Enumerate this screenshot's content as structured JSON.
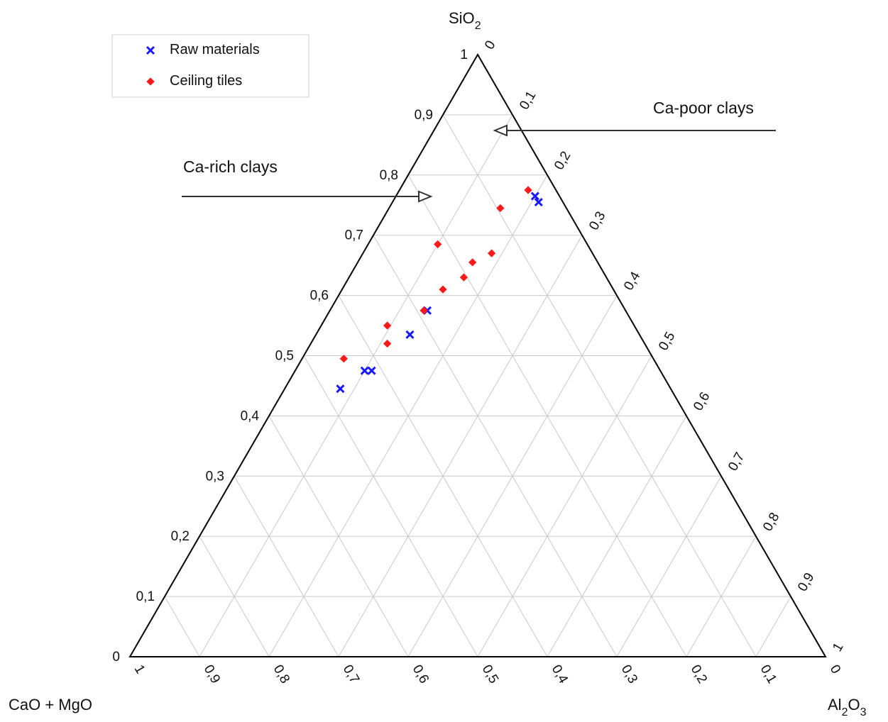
{
  "chart_data": {
    "type": "scatter",
    "diagram": "ternary",
    "axes": {
      "top": {
        "label": "SiO",
        "subscript": "2"
      },
      "left": {
        "label": "CaO + MgO"
      },
      "right": {
        "label": "Al",
        "subscript_1": "2",
        "label_2": "O",
        "subscript_2": "3"
      }
    },
    "ticks": {
      "sio2": [
        "0",
        "0,1",
        "0,2",
        "0,3",
        "0,4",
        "0,5",
        "0,6",
        "0,7",
        "0,8",
        "0,9",
        "1"
      ],
      "al2o3": [
        "0",
        "0,1",
        "0,2",
        "0,3",
        "0,4",
        "0,5",
        "0,6",
        "0,7",
        "0,8",
        "0,9",
        "1"
      ],
      "cao_mgo": [
        "1",
        "0,9",
        "0,8",
        "0,7",
        "0,6",
        "0,5",
        "0,4",
        "0,3",
        "0,2",
        "0,1",
        "0"
      ]
    },
    "grid": true,
    "legend": {
      "position": "top-left",
      "entries": [
        {
          "name": "Raw materials",
          "marker": "x",
          "color": "#1a1aff"
        },
        {
          "name": "Ceiling tiles",
          "marker": "diamond",
          "color": "#ff1a1a"
        }
      ]
    },
    "series": [
      {
        "name": "Raw materials",
        "marker": "x",
        "color": "#1a1aff",
        "points": [
          {
            "sio2": 0.765,
            "al2o3": 0.2,
            "cao_mgo": 0.035
          },
          {
            "sio2": 0.755,
            "al2o3": 0.21,
            "cao_mgo": 0.035
          },
          {
            "sio2": 0.575,
            "al2o3": 0.14,
            "cao_mgo": 0.285
          },
          {
            "sio2": 0.535,
            "al2o3": 0.135,
            "cao_mgo": 0.33
          },
          {
            "sio2": 0.475,
            "al2o3": 0.1,
            "cao_mgo": 0.425
          },
          {
            "sio2": 0.475,
            "al2o3": 0.11,
            "cao_mgo": 0.415
          },
          {
            "sio2": 0.445,
            "al2o3": 0.08,
            "cao_mgo": 0.475
          }
        ]
      },
      {
        "name": "Ceiling tiles",
        "marker": "diamond",
        "color": "#ff1a1a",
        "points": [
          {
            "sio2": 0.775,
            "al2o3": 0.185,
            "cao_mgo": 0.04
          },
          {
            "sio2": 0.745,
            "al2o3": 0.16,
            "cao_mgo": 0.095
          },
          {
            "sio2": 0.685,
            "al2o3": 0.1,
            "cao_mgo": 0.215
          },
          {
            "sio2": 0.67,
            "al2o3": 0.185,
            "cao_mgo": 0.145
          },
          {
            "sio2": 0.655,
            "al2o3": 0.165,
            "cao_mgo": 0.18
          },
          {
            "sio2": 0.63,
            "al2o3": 0.165,
            "cao_mgo": 0.205
          },
          {
            "sio2": 0.61,
            "al2o3": 0.145,
            "cao_mgo": 0.245
          },
          {
            "sio2": 0.575,
            "al2o3": 0.135,
            "cao_mgo": 0.29
          },
          {
            "sio2": 0.55,
            "al2o3": 0.095,
            "cao_mgo": 0.355
          },
          {
            "sio2": 0.52,
            "al2o3": 0.11,
            "cao_mgo": 0.37
          },
          {
            "sio2": 0.495,
            "al2o3": 0.06,
            "cao_mgo": 0.445
          }
        ]
      }
    ],
    "annotations": [
      {
        "text": "Ca-rich clays",
        "points_to": {
          "sio2": 0.76,
          "al2o3": 0.02,
          "cao_mgo": 0.22
        }
      },
      {
        "text": "Ca-poor clays",
        "points_to": {
          "sio2": 0.87,
          "al2o3": 0.09,
          "cao_mgo": 0.04
        }
      }
    ]
  }
}
